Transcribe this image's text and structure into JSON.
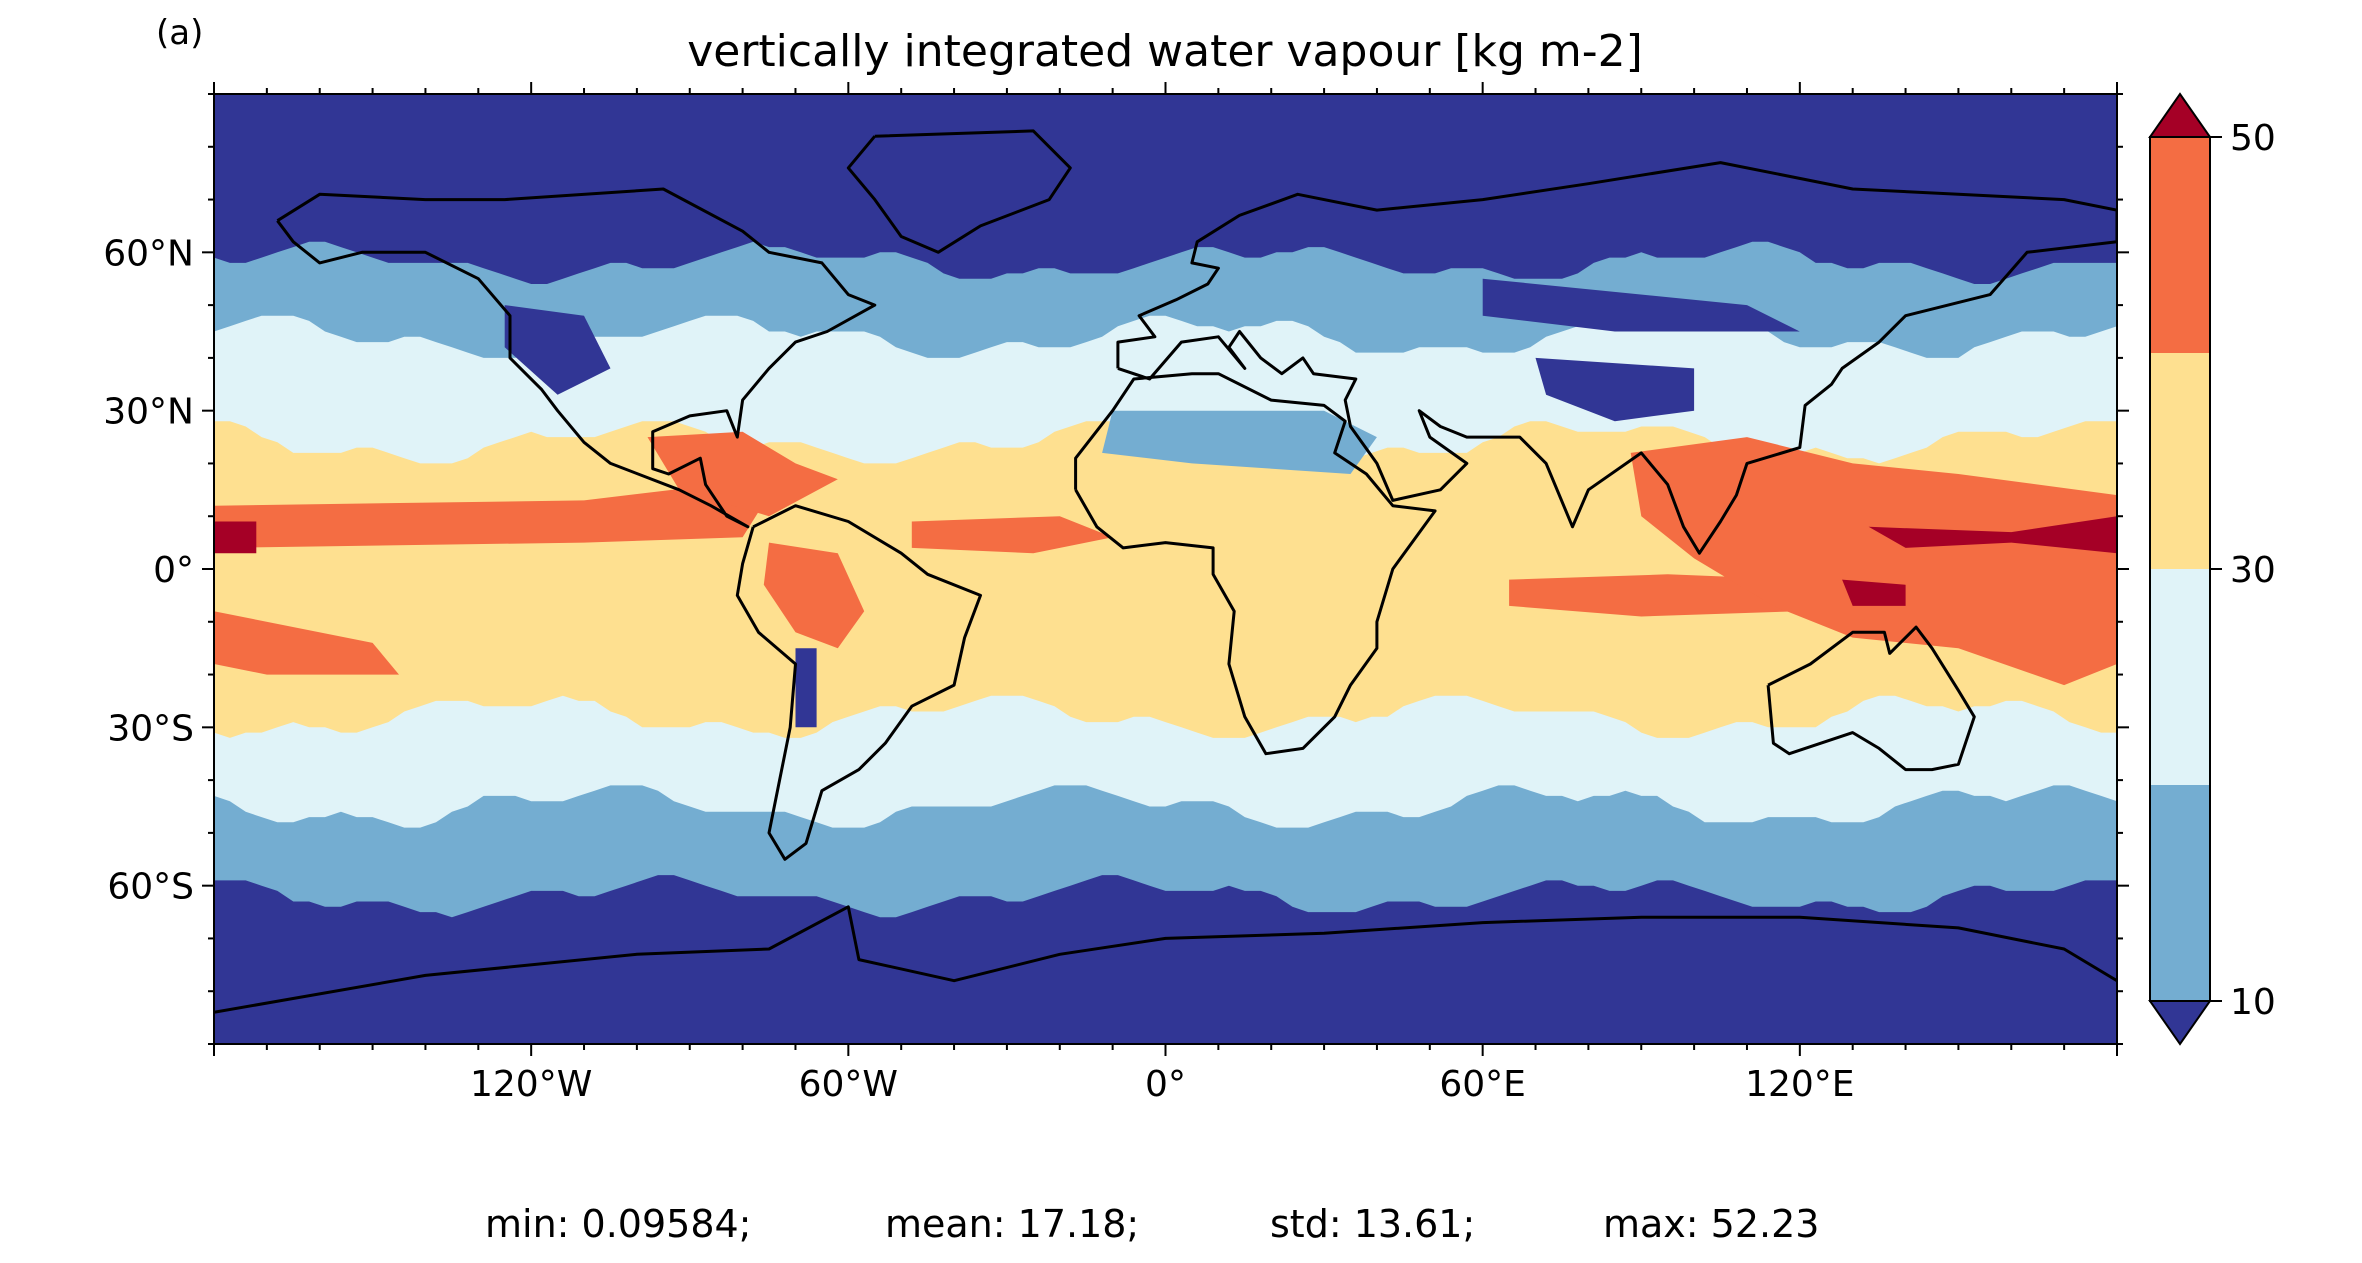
{
  "panel_label": "(a)",
  "title": "vertically integrated water vapour [kg m-2]",
  "colors": {
    "level_0": "#313695",
    "level_1": "#74add1",
    "level_2": "#e0f3f8",
    "level_3": "#fee090",
    "level_4": "#f46d43",
    "level_5": "#a50026",
    "coastline": "#000000"
  },
  "colorbar": {
    "tick_labels": [
      "10",
      "30",
      "50"
    ],
    "extend": "both"
  },
  "axes": {
    "lon_range": [
      -180,
      180
    ],
    "lat_range": [
      -90,
      90
    ],
    "x_ticks": [
      {
        "lon": -120,
        "label": "120°W"
      },
      {
        "lon": -60,
        "label": "60°W"
      },
      {
        "lon": 0,
        "label": "0°"
      },
      {
        "lon": 60,
        "label": "60°E"
      },
      {
        "lon": 120,
        "label": "120°E"
      }
    ],
    "y_ticks": [
      {
        "lat": 60,
        "label": "60°N"
      },
      {
        "lat": 30,
        "label": "30°N"
      },
      {
        "lat": 0,
        "label": "0°"
      },
      {
        "lat": -30,
        "label": "30°S"
      },
      {
        "lat": -60,
        "label": "60°S"
      }
    ]
  },
  "stats": {
    "min": "min: 0.09584;",
    "mean": "mean: 17.18;",
    "std": "std: 13.61;",
    "max": "max: 52.23"
  }
}
